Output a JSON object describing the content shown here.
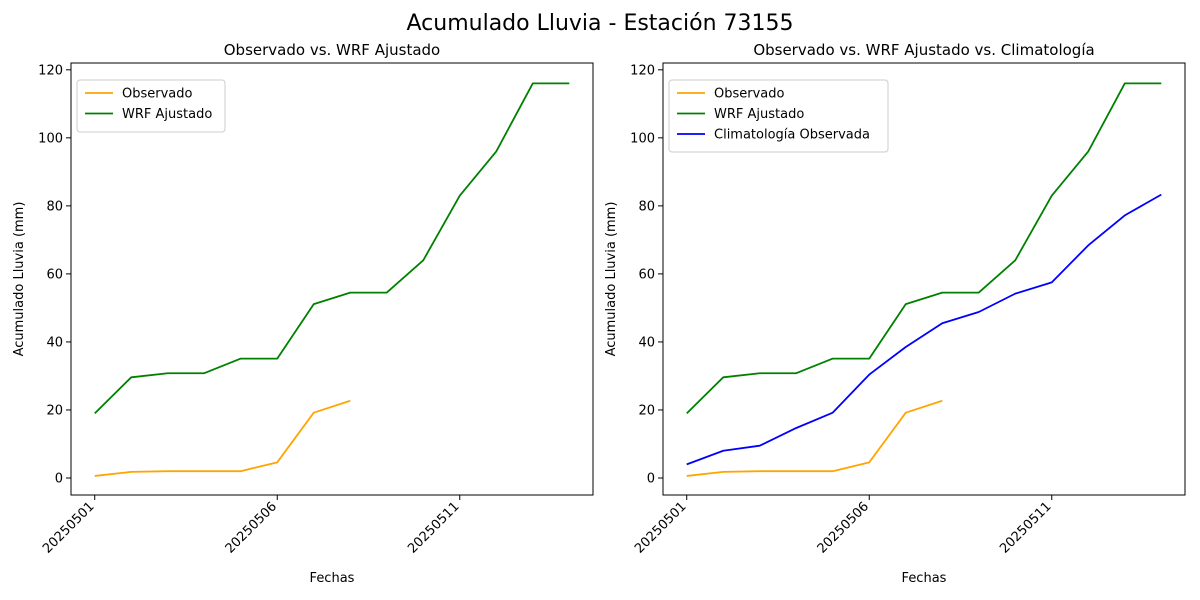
{
  "figure": {
    "title": "Acumulado Lluvia - Estación 73155"
  },
  "chart_data": [
    {
      "type": "line",
      "title": "Observado vs. WRF Ajustado",
      "xlabel": "Fechas",
      "ylabel": "Acumulado Lluvia (mm)",
      "x": [
        "20250501",
        "20250502",
        "20250503",
        "20250504",
        "20250505",
        "20250506",
        "20250507",
        "20250508",
        "20250509",
        "20250510",
        "20250511",
        "20250512",
        "20250513",
        "20250514"
      ],
      "xticks": [
        "20250501",
        "20250506",
        "20250511"
      ],
      "yticks": [
        0,
        20,
        40,
        60,
        80,
        100,
        120
      ],
      "ylim": [
        -5,
        122
      ],
      "legend": "upper-left",
      "grid": false,
      "series": [
        {
          "name": "Observado",
          "color": "#FFA500",
          "values": [
            0.6,
            1.8,
            2.0,
            2.0,
            2.0,
            4.6,
            19.2,
            22.7,
            null,
            null,
            null,
            null,
            null,
            null
          ]
        },
        {
          "name": "WRF Ajustado",
          "color": "#008000",
          "values": [
            19.0,
            29.6,
            30.8,
            30.8,
            35.1,
            35.1,
            51.1,
            54.5,
            54.5,
            64.0,
            83.0,
            96.0,
            116.0,
            116.0
          ]
        }
      ]
    },
    {
      "type": "line",
      "title": "Observado vs. WRF Ajustado vs. Climatología",
      "xlabel": "Fechas",
      "ylabel": "Acumulado Lluvia (mm)",
      "x": [
        "20250501",
        "20250502",
        "20250503",
        "20250504",
        "20250505",
        "20250506",
        "20250507",
        "20250508",
        "20250509",
        "20250510",
        "20250511",
        "20250512",
        "20250513",
        "20250514"
      ],
      "xticks": [
        "20250501",
        "20250506",
        "20250511"
      ],
      "yticks": [
        0,
        20,
        40,
        60,
        80,
        100,
        120
      ],
      "ylim": [
        -5,
        122
      ],
      "legend": "upper-left",
      "grid": false,
      "series": [
        {
          "name": "Observado",
          "color": "#FFA500",
          "values": [
            0.6,
            1.8,
            2.0,
            2.0,
            2.0,
            4.6,
            19.2,
            22.7,
            null,
            null,
            null,
            null,
            null,
            null
          ]
        },
        {
          "name": "WRF Ajustado",
          "color": "#008000",
          "values": [
            19.0,
            29.6,
            30.8,
            30.8,
            35.1,
            35.1,
            51.1,
            54.5,
            54.5,
            64.0,
            83.0,
            96.0,
            116.0,
            116.0
          ]
        },
        {
          "name": "Climatología Observada",
          "color": "#0000FF",
          "values": [
            4.0,
            8.0,
            9.5,
            14.7,
            19.2,
            30.4,
            38.5,
            45.5,
            48.8,
            54.2,
            57.5,
            68.4,
            77.2,
            83.3
          ]
        }
      ]
    }
  ]
}
